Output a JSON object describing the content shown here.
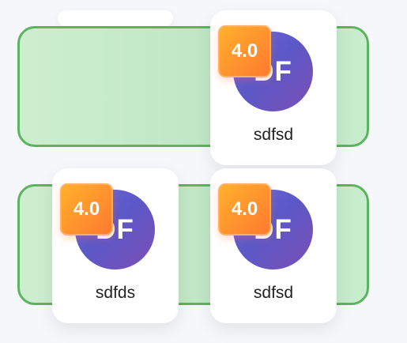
{
  "cards": [
    {
      "name": "sdfsd",
      "rating": "4.0",
      "initials": "DF"
    },
    {
      "name": "sdfds",
      "rating": "4.0",
      "initials": "DF"
    },
    {
      "name": "sdfsd",
      "rating": "4.0",
      "initials": "DF"
    }
  ],
  "colors": {
    "bar_border": "#5cb360",
    "bar_fill": "#c7edcc",
    "badge": "#ff7a2f",
    "avatar": "#5c58c8"
  }
}
